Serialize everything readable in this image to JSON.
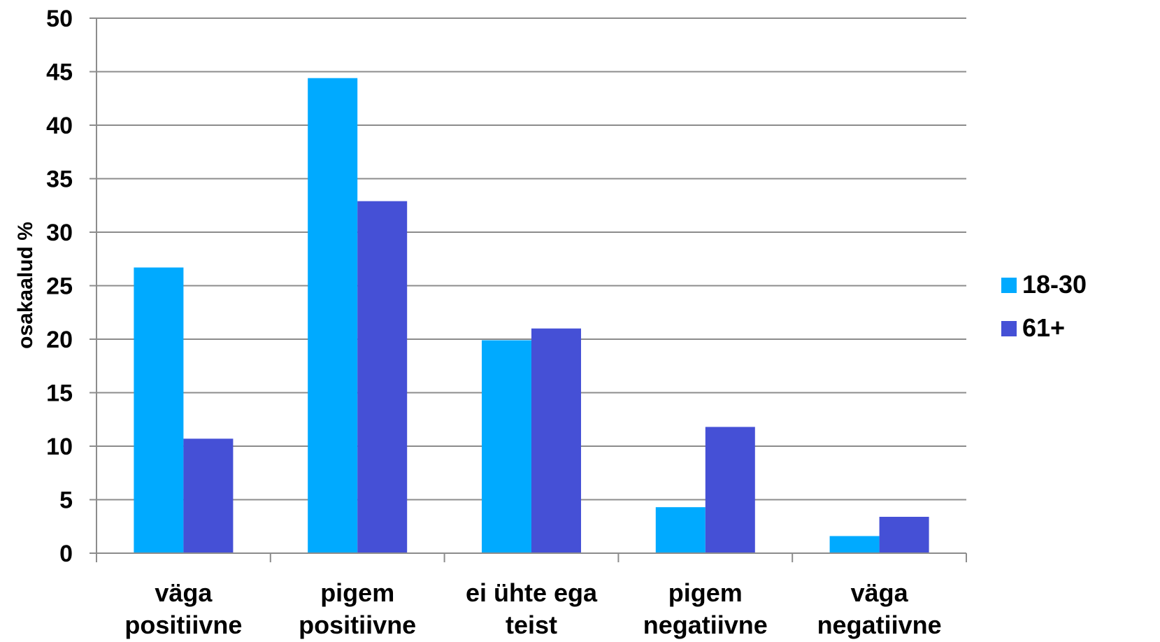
{
  "chart_data": {
    "type": "bar",
    "ylabel": "osakaalud %",
    "ylim": [
      0,
      50
    ],
    "ytick_step": 5,
    "grid": true,
    "legend_position": "right",
    "categories": [
      [
        "väga",
        "positiivne"
      ],
      [
        "pigem",
        "positiivne"
      ],
      [
        "ei ühte ega",
        "teist"
      ],
      [
        "pigem",
        "negatiivne"
      ],
      [
        "väga",
        "negatiivne"
      ]
    ],
    "series": [
      {
        "name": "18-30",
        "color": "#00AAFF",
        "values": [
          26.7,
          44.4,
          19.9,
          4.3,
          1.6
        ]
      },
      {
        "name": "61+",
        "color": "#4550D6",
        "values": [
          10.7,
          32.9,
          21.0,
          11.8,
          3.4
        ]
      }
    ],
    "gridline_color": "#8c8c8c"
  }
}
